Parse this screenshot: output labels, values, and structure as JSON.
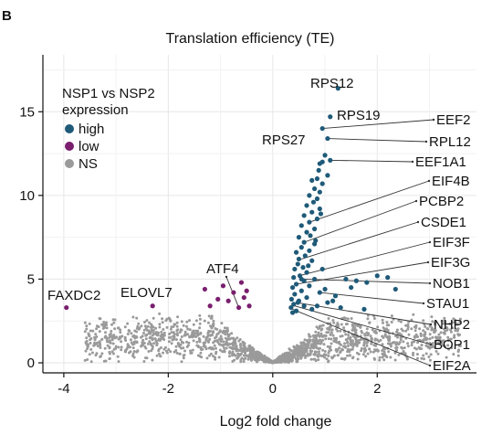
{
  "panel_label": "B",
  "chart_data": {
    "type": "scatter",
    "title": "Translation efficiency (TE)",
    "xlabel": "Log2 fold change",
    "ylabel": "",
    "xlim": [
      -4.4,
      3.9
    ],
    "ylim": [
      -0.6,
      18.4
    ],
    "xticks": [
      -4,
      -2,
      0,
      2
    ],
    "yticks": [
      0,
      5,
      10,
      15
    ],
    "grid": true,
    "legend": {
      "title": "NSP1 vs NSP2 expression",
      "title_lines": [
        "NSP1 vs NSP2",
        "expression"
      ],
      "placement": "top-left",
      "entries": [
        {
          "label": "high",
          "color": "#1f5a78"
        },
        {
          "label": "low",
          "color": "#7a1f6e"
        },
        {
          "label": "NS",
          "color": "#9a9a9a"
        }
      ]
    },
    "colors": {
      "high": "#1f5a78",
      "low": "#7a1f6e",
      "NS": "#9a9a9a"
    },
    "series": [
      {
        "name": "high",
        "points": [
          [
            1.25,
            16.4
          ],
          [
            1.1,
            14.7
          ],
          [
            0.95,
            14.0
          ],
          [
            1.05,
            13.4
          ],
          [
            1.0,
            12.4
          ],
          [
            0.95,
            12.0
          ],
          [
            1.1,
            12.1
          ],
          [
            0.9,
            11.9
          ],
          [
            0.88,
            11.5
          ],
          [
            1.05,
            11.2
          ],
          [
            0.85,
            11.0
          ],
          [
            0.75,
            10.9
          ],
          [
            0.95,
            10.7
          ],
          [
            0.8,
            10.4
          ],
          [
            0.9,
            10.2
          ],
          [
            0.7,
            10.0
          ],
          [
            0.85,
            9.8
          ],
          [
            0.78,
            9.6
          ],
          [
            0.65,
            9.4
          ],
          [
            0.9,
            9.2
          ],
          [
            0.75,
            9.0
          ],
          [
            0.6,
            8.8
          ],
          [
            0.85,
            8.6
          ],
          [
            0.7,
            8.4
          ],
          [
            0.55,
            8.2
          ],
          [
            0.8,
            8.0
          ],
          [
            0.65,
            7.8
          ],
          [
            0.72,
            7.6
          ],
          [
            0.5,
            7.5
          ],
          [
            0.6,
            7.2
          ],
          [
            0.8,
            7.1
          ],
          [
            0.55,
            6.9
          ],
          [
            0.7,
            6.7
          ],
          [
            0.45,
            6.6
          ],
          [
            0.62,
            6.4
          ],
          [
            0.5,
            6.2
          ],
          [
            0.75,
            6.1
          ],
          [
            0.48,
            5.9
          ],
          [
            0.58,
            5.7
          ],
          [
            0.42,
            5.6
          ],
          [
            0.65,
            5.4
          ],
          [
            0.52,
            5.2
          ],
          [
            0.4,
            5.1
          ],
          [
            0.8,
            5.0
          ],
          [
            0.6,
            4.9
          ],
          [
            0.45,
            4.7
          ],
          [
            0.7,
            4.6
          ],
          [
            0.38,
            4.5
          ],
          [
            0.55,
            4.3
          ],
          [
            0.9,
            4.2
          ],
          [
            0.42,
            4.1
          ],
          [
            0.65,
            3.9
          ],
          [
            0.36,
            3.8
          ],
          [
            0.5,
            3.7
          ],
          [
            1.05,
            3.6
          ],
          [
            0.4,
            3.5
          ],
          [
            0.6,
            3.4
          ],
          [
            0.35,
            3.3
          ],
          [
            0.75,
            3.2
          ],
          [
            0.45,
            3.1
          ],
          [
            1.0,
            4.4
          ],
          [
            1.15,
            3.7
          ],
          [
            1.3,
            3.3
          ],
          [
            1.5,
            4.5
          ],
          [
            1.6,
            4.9
          ],
          [
            1.75,
            3.2
          ],
          [
            1.4,
            5.0
          ],
          [
            2.0,
            5.2
          ],
          [
            2.2,
            5.1
          ],
          [
            2.35,
            4.4
          ],
          [
            1.8,
            4.8
          ],
          [
            0.55,
            5.0
          ],
          [
            0.48,
            3.6
          ],
          [
            0.85,
            3.4
          ],
          [
            0.38,
            3.0
          ],
          [
            0.95,
            5.6
          ],
          [
            0.68,
            5.8
          ],
          [
            1.2,
            4.0
          ],
          [
            0.82,
            7.3
          ],
          [
            0.92,
            8.9
          ]
        ]
      },
      {
        "name": "low",
        "points": [
          [
            -3.95,
            3.3
          ],
          [
            -2.3,
            3.4
          ],
          [
            -1.3,
            4.4
          ],
          [
            -1.2,
            3.4
          ],
          [
            -1.05,
            3.8
          ],
          [
            -0.95,
            4.6
          ],
          [
            -0.85,
            3.7
          ],
          [
            -0.75,
            4.2
          ],
          [
            -0.65,
            3.3
          ],
          [
            -0.55,
            3.9
          ],
          [
            -0.5,
            4.3
          ],
          [
            -0.45,
            3.4
          ],
          [
            -0.6,
            4.8
          ]
        ]
      }
    ],
    "ns_cloud": {
      "count": 1800,
      "x_spread": 3.6,
      "y_max": 3.0
    },
    "gene_labels": [
      {
        "text": "RPS12",
        "x": 1.25,
        "y": 16.4
      },
      {
        "text": "RPS19",
        "x": 1.1,
        "y": 14.7
      },
      {
        "text": "RPS27",
        "x": 0.95,
        "y": 14.0
      },
      {
        "text": "EEF2",
        "x": 0.95,
        "y": 14.0
      },
      {
        "text": "RPL12",
        "x": 1.05,
        "y": 13.4
      },
      {
        "text": "EEF1A1",
        "x": 1.1,
        "y": 12.1
      },
      {
        "text": "EIF4B",
        "x": 0.7,
        "y": 8.4
      },
      {
        "text": "PCBP2",
        "x": 0.6,
        "y": 7.2
      },
      {
        "text": "CSDE1",
        "x": 0.55,
        "y": 6.2
      },
      {
        "text": "EIF3F",
        "x": 0.5,
        "y": 5.2
      },
      {
        "text": "EIF3G",
        "x": 0.45,
        "y": 4.7
      },
      {
        "text": "NOB1",
        "x": 0.55,
        "y": 5.0
      },
      {
        "text": "STAU1",
        "x": 0.9,
        "y": 4.2
      },
      {
        "text": "NHP2",
        "x": 0.45,
        "y": 3.6
      },
      {
        "text": "BOP1",
        "x": 0.42,
        "y": 3.4
      },
      {
        "text": "EIF2A",
        "x": 0.38,
        "y": 3.2
      },
      {
        "text": "ATF4",
        "x": -0.65,
        "y": 3.3
      },
      {
        "text": "ELOVL7",
        "x": -2.3,
        "y": 3.4
      },
      {
        "text": "FAXDC2",
        "x": -3.95,
        "y": 3.3
      }
    ]
  }
}
